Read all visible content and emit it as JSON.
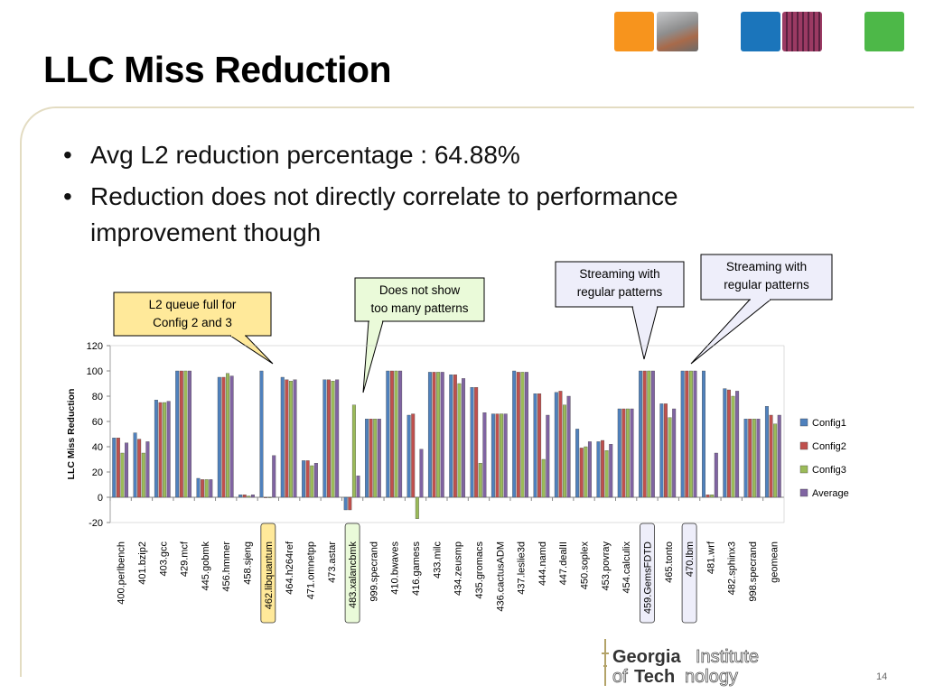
{
  "slide": {
    "title": "LLC Miss Reduction",
    "page_number": "14",
    "bullets": [
      "Avg L2 reduction percentage : 64.88%",
      "Reduction does not directly correlate to performance improvement though"
    ],
    "deco_colors": [
      "#f7941d",
      "#8a8a8a",
      "#1b75bb",
      "#9b3a63",
      "#4db848"
    ]
  },
  "callouts": [
    {
      "text_lines": [
        "L2 queue full for",
        "Config 2 and 3"
      ],
      "fill": "#ffe99a"
    },
    {
      "text_lines": [
        "Does not show",
        "too many patterns"
      ],
      "fill": "#eafad9"
    },
    {
      "text_lines": [
        "Streaming with",
        "regular patterns"
      ],
      "fill": "#eeeefa"
    },
    {
      "text_lines": [
        "Streaming with",
        "regular patterns"
      ],
      "fill": "#eeeefa"
    }
  ],
  "logo": {
    "line1a": "Georgia",
    "line1b": "Institute",
    "line2a": "of",
    "line2b": "Tech",
    "line2c": "nology"
  },
  "chart_data": {
    "type": "bar",
    "title": "",
    "ylabel": "LLC Miss Reduction",
    "ylim": [
      -20,
      120
    ],
    "yticks": [
      -20,
      0,
      20,
      40,
      60,
      80,
      100,
      120
    ],
    "grid": false,
    "legend_position": "right",
    "categories": [
      "400.perlbench",
      "401.bzip2",
      "403.gcc",
      "429.mcf",
      "445.gobmk",
      "456.hmmer",
      "458.sjeng",
      "462.libquantum",
      "464.h264ref",
      "471.omnetpp",
      "473.astar",
      "483.xalancbmk",
      "999.specrand",
      "410.bwaves",
      "416.gamess",
      "433.milc",
      "434.zeusmp",
      "435.gromacs",
      "436.cactusADM",
      "437.leslie3d",
      "444.namd",
      "447.dealII",
      "450.soplex",
      "453.povray",
      "454.calculix",
      "459.GemsFDTD",
      "465.tonto",
      "470.lbm",
      "481.wrf",
      "482.sphinx3",
      "998.specrand",
      "geomean"
    ],
    "highlighted": {
      "462.libquantum": "#ffe99a",
      "483.xalancbmk": "#eafad9",
      "459.GemsFDTD": "#eeeefa",
      "470.lbm": "#eeeefa"
    },
    "series": [
      {
        "name": "Config1",
        "color": "#4f81bd",
        "values": [
          47,
          51,
          77,
          100,
          15,
          95,
          2,
          100,
          95,
          29,
          93,
          -10,
          62,
          100,
          65,
          99,
          97,
          87,
          66,
          100,
          82,
          83,
          54,
          44,
          70,
          100,
          74,
          100,
          100,
          86,
          62,
          72
        ]
      },
      {
        "name": "Config2",
        "color": "#c0504d",
        "values": [
          47,
          46,
          75,
          100,
          14,
          95,
          2,
          0,
          93,
          29,
          93,
          -10,
          62,
          100,
          66,
          99,
          97,
          87,
          66,
          99,
          82,
          84,
          39,
          45,
          70,
          100,
          74,
          100,
          2,
          85,
          62,
          65
        ]
      },
      {
        "name": "Config3",
        "color": "#9bbb59",
        "values": [
          35,
          35,
          75,
          100,
          14,
          98,
          1,
          0,
          92,
          25,
          92,
          73,
          62,
          100,
          -17,
          99,
          90,
          27,
          66,
          99,
          30,
          73,
          40,
          37,
          70,
          100,
          63,
          100,
          2,
          80,
          62,
          58
        ]
      },
      {
        "name": "Average",
        "color": "#8064a2",
        "values": [
          43,
          44,
          76,
          100,
          14,
          96,
          2,
          33,
          93,
          27,
          93,
          17,
          62,
          100,
          38,
          99,
          94,
          67,
          66,
          99,
          65,
          80,
          44,
          42,
          70,
          100,
          70,
          100,
          35,
          84,
          62,
          65
        ]
      }
    ]
  }
}
